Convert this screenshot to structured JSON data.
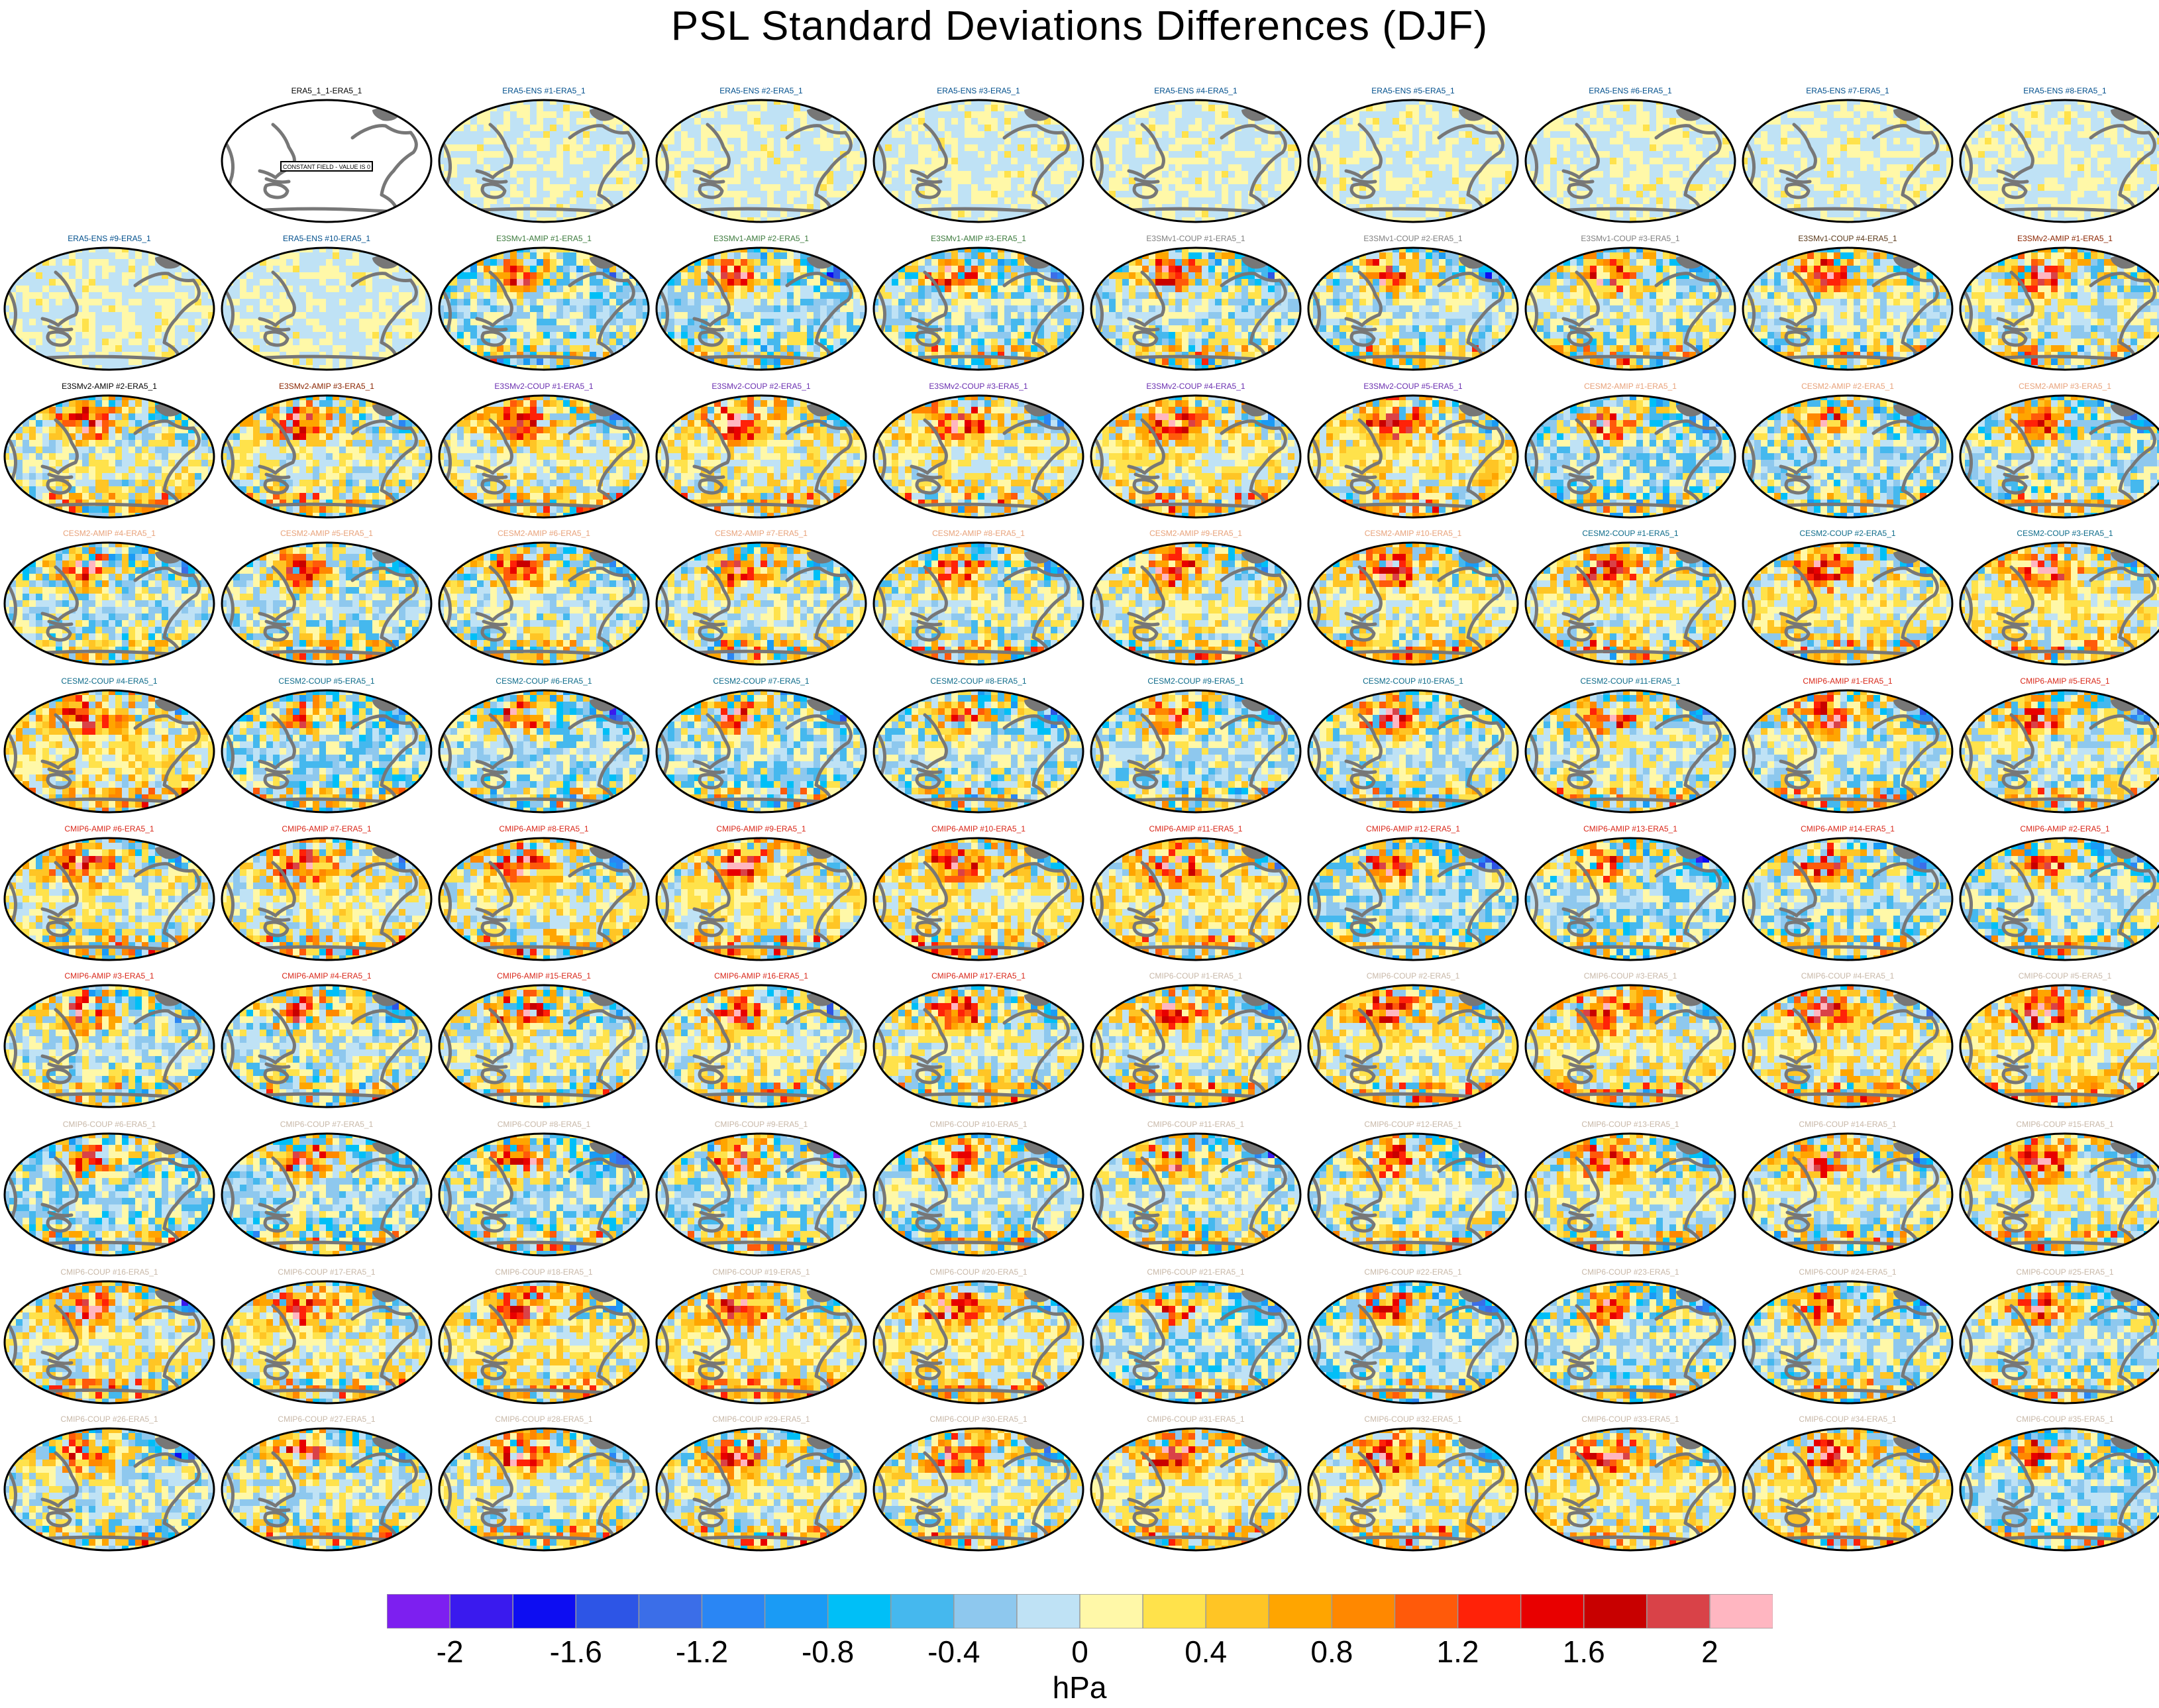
{
  "title": "PSL Standard Deviations Differences (DJF)",
  "reference_note": "CONSTANT FIELD - VALUE IS 0",
  "colorbar": {
    "units": "hPa",
    "tick_labels": [
      "-2",
      "-1.6",
      "-1.2",
      "-0.8",
      "-0.4",
      "0",
      "0.4",
      "0.8",
      "1.2",
      "1.6",
      "2"
    ],
    "colors": [
      "#7d1ff0",
      "#3a1aee",
      "#0d0df2",
      "#2d55e6",
      "#3b6ee8",
      "#2a86f4",
      "#1a9bf5",
      "#00bff7",
      "#45b8ee",
      "#8ec8ee",
      "#bfe2f5",
      "#fff8a8",
      "#ffe24b",
      "#ffc525",
      "#ffa500",
      "#ff8800",
      "#ff5a0a",
      "#ff2208",
      "#e80000",
      "#c80000",
      "#d94248",
      "#ffb6c1"
    ]
  },
  "group_colors": {
    "ref": "#000000",
    "ERA5-ENS": "#004f8c",
    "E3SMv1-AMIP": "#3c7a3c",
    "E3SMv1-COUP": "#808080",
    "E3SMv1-COUP-dark": "#5b3a1a",
    "E3SMv2-AMIP": "#8b2500",
    "E3SMv2-AMIP-black": "#000000",
    "E3SMv2-COUP": "#6a2fb0",
    "CESM2-AMIP": "#e8a27a",
    "CESM2-COUP": "#0d6b8a",
    "CMIP6-AMIP": "#d9281a",
    "CMIP6-COUP": "#c8b8a8"
  },
  "panels": [
    {
      "label": "ERA5_1_1-ERA5_1",
      "group": "ref"
    },
    {
      "label": "ERA5-ENS   #1-ERA5_1",
      "group": "ERA5-ENS"
    },
    {
      "label": "ERA5-ENS   #2-ERA5_1",
      "group": "ERA5-ENS"
    },
    {
      "label": "ERA5-ENS   #3-ERA5_1",
      "group": "ERA5-ENS"
    },
    {
      "label": "ERA5-ENS   #4-ERA5_1",
      "group": "ERA5-ENS"
    },
    {
      "label": "ERA5-ENS   #5-ERA5_1",
      "group": "ERA5-ENS"
    },
    {
      "label": "ERA5-ENS   #6-ERA5_1",
      "group": "ERA5-ENS"
    },
    {
      "label": "ERA5-ENS   #7-ERA5_1",
      "group": "ERA5-ENS"
    },
    {
      "label": "ERA5-ENS   #8-ERA5_1",
      "group": "ERA5-ENS"
    },
    {
      "label": "ERA5-ENS   #9-ERA5_1",
      "group": "ERA5-ENS"
    },
    {
      "label": "ERA5-ENS   #10-ERA5_1",
      "group": "ERA5-ENS"
    },
    {
      "label": "E3SMv1-AMIP #1-ERA5_1",
      "group": "E3SMv1-AMIP"
    },
    {
      "label": "E3SMv1-AMIP #2-ERA5_1",
      "group": "E3SMv1-AMIP"
    },
    {
      "label": "E3SMv1-AMIP #3-ERA5_1",
      "group": "E3SMv1-AMIP"
    },
    {
      "label": "E3SMv1-COUP #1-ERA5_1",
      "group": "E3SMv1-COUP"
    },
    {
      "label": "E3SMv1-COUP #2-ERA5_1",
      "group": "E3SMv1-COUP"
    },
    {
      "label": "E3SMv1-COUP #3-ERA5_1",
      "group": "E3SMv1-COUP"
    },
    {
      "label": "E3SMv1-COUP #4-ERA5_1",
      "group": "E3SMv1-COUP-dark"
    },
    {
      "label": "E3SMv2-AMIP #1-ERA5_1",
      "group": "E3SMv2-AMIP"
    },
    {
      "label": "E3SMv2-AMIP #2-ERA5_1",
      "group": "E3SMv2-AMIP-black"
    },
    {
      "label": "E3SMv2-AMIP #3-ERA5_1",
      "group": "E3SMv2-AMIP"
    },
    {
      "label": "E3SMv2-COUP #1-ERA5_1",
      "group": "E3SMv2-COUP"
    },
    {
      "label": "E3SMv2-COUP #2-ERA5_1",
      "group": "E3SMv2-COUP"
    },
    {
      "label": "E3SMv2-COUP #3-ERA5_1",
      "group": "E3SMv2-COUP"
    },
    {
      "label": "E3SMv2-COUP #4-ERA5_1",
      "group": "E3SMv2-COUP"
    },
    {
      "label": "E3SMv2-COUP #5-ERA5_1",
      "group": "E3SMv2-COUP"
    },
    {
      "label": "CESM2-AMIP  #1-ERA5_1",
      "group": "CESM2-AMIP"
    },
    {
      "label": "CESM2-AMIP  #2-ERA5_1",
      "group": "CESM2-AMIP"
    },
    {
      "label": "CESM2-AMIP  #3-ERA5_1",
      "group": "CESM2-AMIP"
    },
    {
      "label": "CESM2-AMIP  #4-ERA5_1",
      "group": "CESM2-AMIP"
    },
    {
      "label": "CESM2-AMIP  #5-ERA5_1",
      "group": "CESM2-AMIP"
    },
    {
      "label": "CESM2-AMIP  #6-ERA5_1",
      "group": "CESM2-AMIP"
    },
    {
      "label": "CESM2-AMIP  #7-ERA5_1",
      "group": "CESM2-AMIP"
    },
    {
      "label": "CESM2-AMIP  #8-ERA5_1",
      "group": "CESM2-AMIP"
    },
    {
      "label": "CESM2-AMIP  #9-ERA5_1",
      "group": "CESM2-AMIP"
    },
    {
      "label": "CESM2-AMIP  #10-ERA5_1",
      "group": "CESM2-AMIP"
    },
    {
      "label": "CESM2-COUP  #1-ERA5_1",
      "group": "CESM2-COUP"
    },
    {
      "label": "CESM2-COUP  #2-ERA5_1",
      "group": "CESM2-COUP"
    },
    {
      "label": "CESM2-COUP  #3-ERA5_1",
      "group": "CESM2-COUP"
    },
    {
      "label": "CESM2-COUP  #4-ERA5_1",
      "group": "CESM2-COUP"
    },
    {
      "label": "CESM2-COUP  #5-ERA5_1",
      "group": "CESM2-COUP"
    },
    {
      "label": "CESM2-COUP  #6-ERA5_1",
      "group": "CESM2-COUP"
    },
    {
      "label": "CESM2-COUP  #7-ERA5_1",
      "group": "CESM2-COUP"
    },
    {
      "label": "CESM2-COUP  #8-ERA5_1",
      "group": "CESM2-COUP"
    },
    {
      "label": "CESM2-COUP  #9-ERA5_1",
      "group": "CESM2-COUP"
    },
    {
      "label": "CESM2-COUP  #10-ERA5_1",
      "group": "CESM2-COUP"
    },
    {
      "label": "CESM2-COUP  #11-ERA5_1",
      "group": "CESM2-COUP"
    },
    {
      "label": "CMIP6-AMIP  #1-ERA5_1",
      "group": "CMIP6-AMIP"
    },
    {
      "label": "CMIP6-AMIP  #5-ERA5_1",
      "group": "CMIP6-AMIP"
    },
    {
      "label": "CMIP6-AMIP  #6-ERA5_1",
      "group": "CMIP6-AMIP"
    },
    {
      "label": "CMIP6-AMIP  #7-ERA5_1",
      "group": "CMIP6-AMIP"
    },
    {
      "label": "CMIP6-AMIP  #8-ERA5_1",
      "group": "CMIP6-AMIP"
    },
    {
      "label": "CMIP6-AMIP  #9-ERA5_1",
      "group": "CMIP6-AMIP"
    },
    {
      "label": "CMIP6-AMIP  #10-ERA5_1",
      "group": "CMIP6-AMIP"
    },
    {
      "label": "CMIP6-AMIP  #11-ERA5_1",
      "group": "CMIP6-AMIP"
    },
    {
      "label": "CMIP6-AMIP  #12-ERA5_1",
      "group": "CMIP6-AMIP"
    },
    {
      "label": "CMIP6-AMIP  #13-ERA5_1",
      "group": "CMIP6-AMIP"
    },
    {
      "label": "CMIP6-AMIP  #14-ERA5_1",
      "group": "CMIP6-AMIP"
    },
    {
      "label": "CMIP6-AMIP  #2-ERA5_1",
      "group": "CMIP6-AMIP"
    },
    {
      "label": "CMIP6-AMIP  #3-ERA5_1",
      "group": "CMIP6-AMIP"
    },
    {
      "label": "CMIP6-AMIP  #4-ERA5_1",
      "group": "CMIP6-AMIP"
    },
    {
      "label": "CMIP6-AMIP  #15-ERA5_1",
      "group": "CMIP6-AMIP"
    },
    {
      "label": "CMIP6-AMIP  #16-ERA5_1",
      "group": "CMIP6-AMIP"
    },
    {
      "label": "CMIP6-AMIP  #17-ERA5_1",
      "group": "CMIP6-AMIP"
    },
    {
      "label": "CMIP6-COUP  #1-ERA5_1",
      "group": "CMIP6-COUP"
    },
    {
      "label": "CMIP6-COUP  #2-ERA5_1",
      "group": "CMIP6-COUP"
    },
    {
      "label": "CMIP6-COUP  #3-ERA5_1",
      "group": "CMIP6-COUP"
    },
    {
      "label": "CMIP6-COUP  #4-ERA5_1",
      "group": "CMIP6-COUP"
    },
    {
      "label": "CMIP6-COUP  #5-ERA5_1",
      "group": "CMIP6-COUP"
    },
    {
      "label": "CMIP6-COUP  #6-ERA5_1",
      "group": "CMIP6-COUP"
    },
    {
      "label": "CMIP6-COUP  #7-ERA5_1",
      "group": "CMIP6-COUP"
    },
    {
      "label": "CMIP6-COUP  #8-ERA5_1",
      "group": "CMIP6-COUP"
    },
    {
      "label": "CMIP6-COUP  #9-ERA5_1",
      "group": "CMIP6-COUP"
    },
    {
      "label": "CMIP6-COUP  #10-ERA5_1",
      "group": "CMIP6-COUP"
    },
    {
      "label": "CMIP6-COUP  #11-ERA5_1",
      "group": "CMIP6-COUP"
    },
    {
      "label": "CMIP6-COUP  #12-ERA5_1",
      "group": "CMIP6-COUP"
    },
    {
      "label": "CMIP6-COUP  #13-ERA5_1",
      "group": "CMIP6-COUP"
    },
    {
      "label": "CMIP6-COUP  #14-ERA5_1",
      "group": "CMIP6-COUP"
    },
    {
      "label": "CMIP6-COUP  #15-ERA5_1",
      "group": "CMIP6-COUP"
    },
    {
      "label": "CMIP6-COUP  #16-ERA5_1",
      "group": "CMIP6-COUP"
    },
    {
      "label": "CMIP6-COUP  #17-ERA5_1",
      "group": "CMIP6-COUP"
    },
    {
      "label": "CMIP6-COUP  #18-ERA5_1",
      "group": "CMIP6-COUP"
    },
    {
      "label": "CMIP6-COUP  #19-ERA5_1",
      "group": "CMIP6-COUP"
    },
    {
      "label": "CMIP6-COUP  #20-ERA5_1",
      "group": "CMIP6-COUP"
    },
    {
      "label": "CMIP6-COUP  #21-ERA5_1",
      "group": "CMIP6-COUP"
    },
    {
      "label": "CMIP6-COUP  #22-ERA5_1",
      "group": "CMIP6-COUP"
    },
    {
      "label": "CMIP6-COUP  #23-ERA5_1",
      "group": "CMIP6-COUP"
    },
    {
      "label": "CMIP6-COUP  #24-ERA5_1",
      "group": "CMIP6-COUP"
    },
    {
      "label": "CMIP6-COUP  #25-ERA5_1",
      "group": "CMIP6-COUP"
    },
    {
      "label": "CMIP6-COUP  #26-ERA5_1",
      "group": "CMIP6-COUP"
    },
    {
      "label": "CMIP6-COUP  #27-ERA5_1",
      "group": "CMIP6-COUP"
    },
    {
      "label": "CMIP6-COUP  #28-ERA5_1",
      "group": "CMIP6-COUP"
    },
    {
      "label": "CMIP6-COUP  #29-ERA5_1",
      "group": "CMIP6-COUP"
    },
    {
      "label": "CMIP6-COUP  #30-ERA5_1",
      "group": "CMIP6-COUP"
    },
    {
      "label": "CMIP6-COUP  #31-ERA5_1",
      "group": "CMIP6-COUP"
    },
    {
      "label": "CMIP6-COUP  #32-ERA5_1",
      "group": "CMIP6-COUP"
    },
    {
      "label": "CMIP6-COUP  #33-ERA5_1",
      "group": "CMIP6-COUP"
    },
    {
      "label": "CMIP6-COUP  #34-ERA5_1",
      "group": "CMIP6-COUP"
    },
    {
      "label": "CMIP6-COUP  #35-ERA5_1",
      "group": "CMIP6-COUP"
    }
  ]
}
